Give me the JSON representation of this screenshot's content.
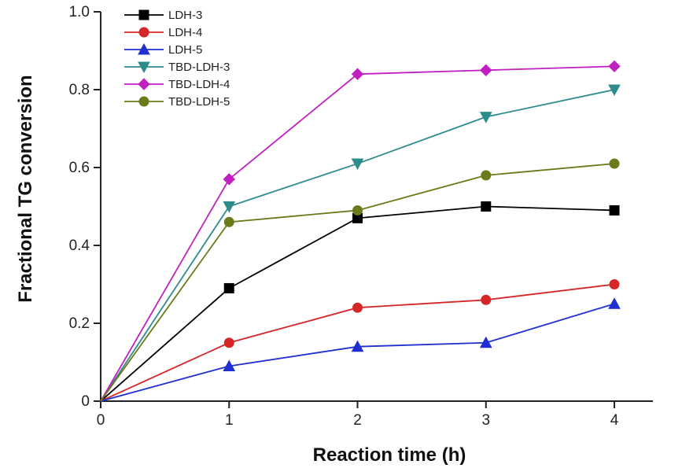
{
  "chart_data": {
    "type": "line",
    "xlabel": "Reaction time (h)",
    "ylabel": "Fractional TG conversion",
    "xlim": [
      0,
      4.3
    ],
    "ylim": [
      0,
      1.0
    ],
    "x_ticks": [
      "0",
      "1",
      "2",
      "3",
      "4"
    ],
    "y_ticks": [
      "0",
      "0.2",
      "0.4",
      "0.6",
      "0.8",
      "1.0"
    ],
    "x": [
      0,
      1,
      2,
      3,
      4
    ],
    "legend_position": "top-left",
    "grid": false,
    "series": [
      {
        "name": "LDH-3",
        "color": "#000000",
        "marker": "square",
        "values": [
          0,
          0.29,
          0.47,
          0.5,
          0.49
        ]
      },
      {
        "name": "LDH-4",
        "color": "#d62728",
        "marker": "circle",
        "values": [
          0,
          0.15,
          0.24,
          0.26,
          0.3
        ]
      },
      {
        "name": "LDH-5",
        "color": "#1f2fd0",
        "marker": "triangle-up",
        "values": [
          0,
          0.09,
          0.14,
          0.15,
          0.25
        ]
      },
      {
        "name": "TBD-LDH-3",
        "color": "#2e8b8b",
        "marker": "triangle-down",
        "values": [
          0,
          0.5,
          0.61,
          0.73,
          0.8
        ]
      },
      {
        "name": "TBD-LDH-4",
        "color": "#c21fc2",
        "marker": "diamond",
        "values": [
          0,
          0.57,
          0.84,
          0.85,
          0.86
        ]
      },
      {
        "name": "TBD-LDH-5",
        "color": "#6b7a1a",
        "marker": "circle",
        "values": [
          0,
          0.46,
          0.49,
          0.58,
          0.61
        ]
      }
    ]
  }
}
